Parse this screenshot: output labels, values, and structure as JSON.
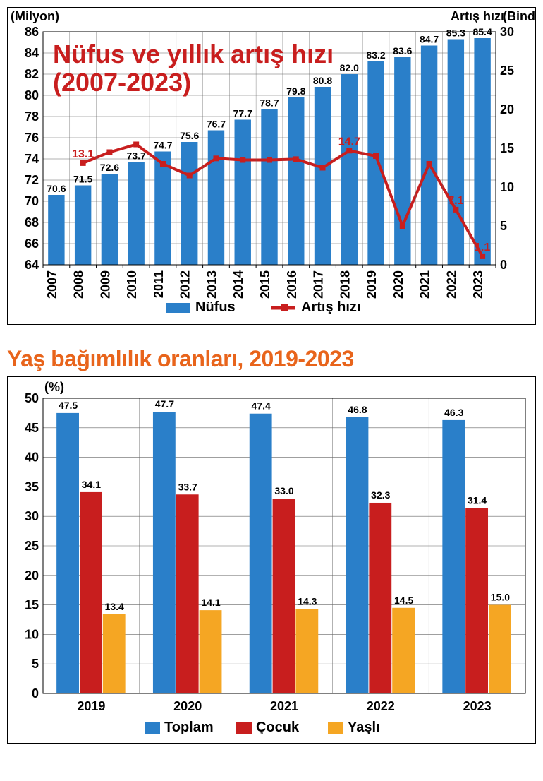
{
  "chart1": {
    "type": "bar+line",
    "title_line1": "Nüfus ve yıllık artış hızı",
    "title_line2": "(2007-2023)",
    "title_color": "#c81e1e",
    "title_fontsize": 36,
    "left_axis_label": "(Milyon)",
    "right_axis_label_1": "Artış hızı",
    "right_axis_label_2": "(Binde)",
    "years": [
      "2007",
      "2008",
      "2009",
      "2010",
      "2011",
      "2012",
      "2013",
      "2014",
      "2015",
      "2016",
      "2017",
      "2018",
      "2019",
      "2020",
      "2021",
      "2022",
      "2023"
    ],
    "population": [
      70.6,
      71.5,
      72.6,
      73.7,
      74.7,
      75.6,
      76.7,
      77.7,
      78.7,
      79.8,
      80.8,
      82.0,
      83.2,
      83.6,
      84.7,
      85.3,
      85.4
    ],
    "growth": [
      null,
      13.1,
      14.5,
      15.5,
      13.0,
      11.5,
      13.7,
      13.5,
      13.5,
      13.6,
      12.5,
      14.7,
      14.0,
      5.0,
      13.0,
      7.1,
      1.1
    ],
    "growth_labels": {
      "1": "13.1",
      "11": "14.7",
      "15": "7.1",
      "16": "1.1"
    },
    "bar_color": "#2a7fc9",
    "line_color": "#c81e1e",
    "y_left_min": 64,
    "y_left_max": 86,
    "y_left_step": 2,
    "y_right_min": 0,
    "y_right_max": 30,
    "y_right_step": 5,
    "grid_color": "#666666",
    "legend_bar": "Nüfus",
    "legend_line": "Artış hızı",
    "pop_label_11": "74.7"
  },
  "chart2": {
    "type": "grouped-bar",
    "title": "Yaş bağımlılık oranları, 2019-2023",
    "title_color": "#e8641b",
    "title_fontsize": 32,
    "y_label": "(%)",
    "years": [
      "2019",
      "2020",
      "2021",
      "2022",
      "2023"
    ],
    "series": [
      {
        "name": "Toplam",
        "color": "#2a7fc9",
        "values": [
          47.5,
          47.7,
          47.4,
          46.8,
          46.3
        ]
      },
      {
        "name": "Çocuk",
        "color": "#c81e1e",
        "values": [
          34.1,
          33.7,
          33.0,
          32.3,
          31.4
        ]
      },
      {
        "name": "Yaşlı",
        "color": "#f5a623",
        "values": [
          13.4,
          14.1,
          14.3,
          14.5,
          15.0
        ]
      }
    ],
    "y_min": 0,
    "y_max": 50,
    "y_step": 5,
    "grid_color": "#666666",
    "value_label_offset": 18
  }
}
